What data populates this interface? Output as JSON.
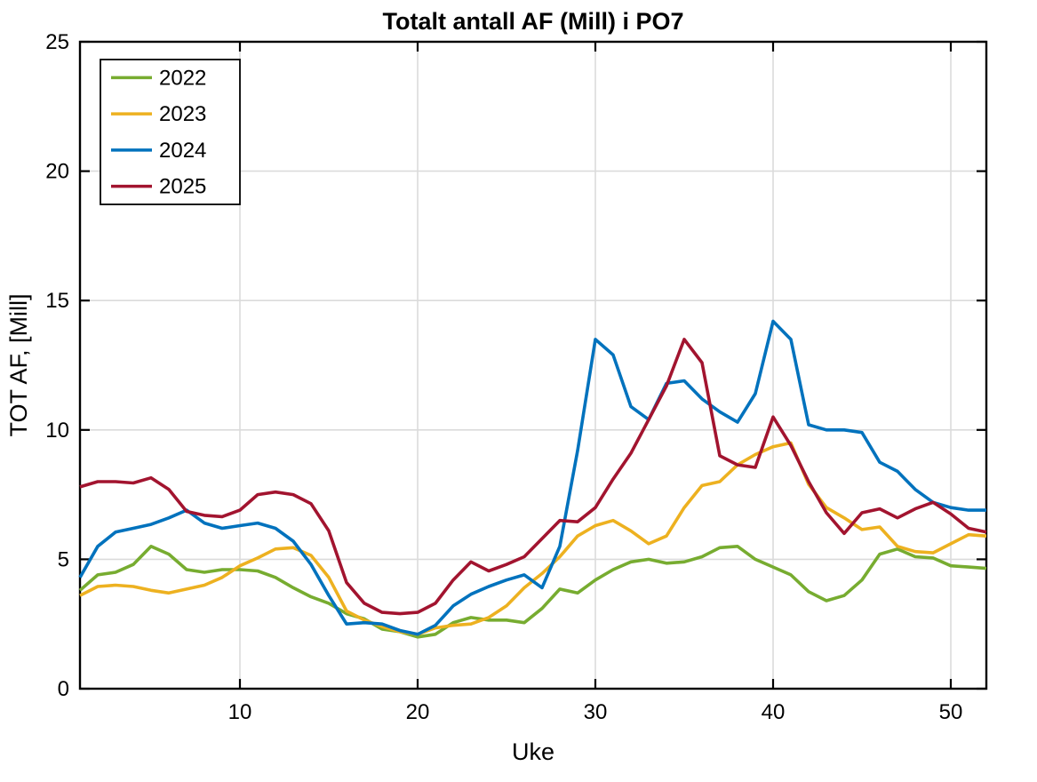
{
  "figure": {
    "background": "#FFFFFF",
    "axis_color": "#000000",
    "grid_color": "#DBDBDB"
  },
  "chart_data": {
    "type": "line",
    "title": "Totalt antall AF (Mill) i PO7",
    "xlabel": "Uke",
    "ylabel": "TOT AF, [Mill]",
    "xlim": [
      1,
      52
    ],
    "ylim": [
      0,
      25
    ],
    "xticks": [
      10,
      20,
      30,
      40,
      50
    ],
    "yticks": [
      0,
      5,
      10,
      15,
      20,
      25
    ],
    "grid": true,
    "legend_position": "top-left",
    "x": [
      1,
      2,
      3,
      4,
      5,
      6,
      7,
      8,
      9,
      10,
      11,
      12,
      13,
      14,
      15,
      16,
      17,
      18,
      19,
      20,
      21,
      22,
      23,
      24,
      25,
      26,
      27,
      28,
      29,
      30,
      31,
      32,
      33,
      34,
      35,
      36,
      37,
      38,
      39,
      40,
      41,
      42,
      43,
      44,
      45,
      46,
      47,
      48,
      49,
      50,
      51,
      52
    ],
    "series": [
      {
        "name": "2022",
        "color": "#77AC30",
        "values": [
          3.8,
          4.4,
          4.5,
          4.8,
          5.5,
          5.2,
          4.6,
          4.5,
          4.6,
          4.6,
          4.55,
          4.3,
          3.9,
          3.55,
          3.3,
          2.9,
          2.7,
          2.3,
          2.2,
          2.0,
          2.1,
          2.55,
          2.75,
          2.65,
          2.65,
          2.55,
          3.1,
          3.85,
          3.7,
          4.2,
          4.6,
          4.9,
          5.0,
          4.85,
          4.9,
          5.1,
          5.45,
          5.5,
          5.0,
          4.7,
          4.4,
          3.75,
          3.4,
          3.6,
          4.2,
          5.2,
          5.4,
          5.1,
          5.05,
          4.75,
          4.7,
          4.65
        ]
      },
      {
        "name": "2023",
        "color": "#EDB120",
        "values": [
          3.6,
          3.95,
          4.0,
          3.95,
          3.8,
          3.7,
          3.85,
          4.0,
          4.3,
          4.75,
          5.05,
          5.4,
          5.45,
          5.15,
          4.3,
          3.0,
          2.65,
          2.4,
          2.2,
          2.1,
          2.35,
          2.45,
          2.5,
          2.75,
          3.2,
          3.9,
          4.45,
          5.1,
          5.9,
          6.3,
          6.5,
          6.1,
          5.6,
          5.9,
          7.0,
          7.85,
          8.0,
          8.65,
          9.05,
          9.35,
          9.5,
          7.9,
          7.0,
          6.6,
          6.15,
          6.25,
          5.5,
          5.3,
          5.25,
          5.6,
          5.95,
          5.9
        ]
      },
      {
        "name": "2024",
        "color": "#0072BD",
        "values": [
          4.3,
          5.5,
          6.05,
          6.2,
          6.35,
          6.6,
          6.9,
          6.4,
          6.2,
          6.3,
          6.4,
          6.2,
          5.7,
          4.8,
          3.6,
          2.5,
          2.55,
          2.5,
          2.25,
          2.1,
          2.45,
          3.2,
          3.65,
          3.95,
          4.2,
          4.4,
          3.9,
          5.5,
          9.2,
          13.5,
          12.9,
          10.9,
          10.4,
          11.8,
          11.9,
          11.2,
          10.7,
          10.3,
          11.4,
          14.2,
          13.5,
          10.2,
          10.0,
          10.0,
          9.9,
          8.75,
          8.4,
          7.7,
          7.2,
          7.0,
          6.9,
          6.9
        ]
      },
      {
        "name": "2025",
        "color": "#A2142F",
        "values": [
          7.8,
          8.0,
          8.0,
          7.95,
          8.15,
          7.7,
          6.85,
          6.7,
          6.65,
          6.9,
          7.5,
          7.6,
          7.5,
          7.15,
          6.1,
          4.1,
          3.3,
          2.95,
          2.9,
          2.95,
          3.3,
          4.2,
          4.9,
          4.55,
          4.8,
          5.1,
          5.8,
          6.5,
          6.45,
          7.0,
          8.1,
          9.1,
          10.4,
          11.7,
          13.5,
          12.6,
          9.0,
          8.65,
          8.55,
          10.5,
          9.4,
          8.0,
          6.8,
          6.0,
          6.8,
          6.95,
          6.6,
          6.95,
          7.2,
          6.75,
          6.2,
          6.05
        ]
      }
    ]
  }
}
